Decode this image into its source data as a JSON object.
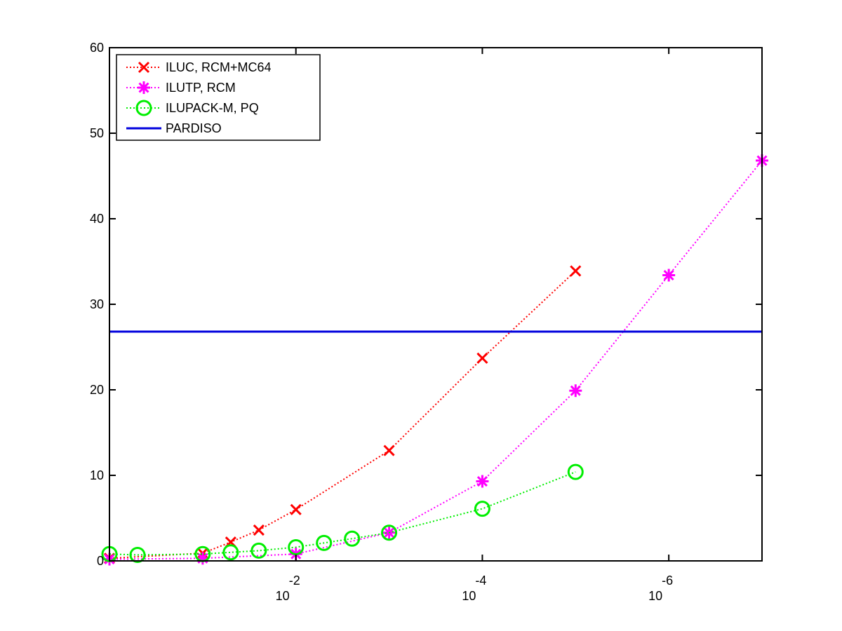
{
  "chart_data": {
    "type": "line",
    "title": "",
    "xlabel": "",
    "ylabel": "",
    "x_axis": {
      "scale": "log",
      "direction": "decreasing",
      "range": [
        1,
        1e-07
      ],
      "ticks": [
        {
          "value": 0.01,
          "base": "10",
          "exponent": "-2"
        },
        {
          "value": 0.0001,
          "base": "10",
          "exponent": "-4"
        },
        {
          "value": 1e-06,
          "base": "10",
          "exponent": "-6"
        }
      ]
    },
    "y_axis": {
      "scale": "linear",
      "range": [
        0,
        60
      ],
      "ticks": [
        "0",
        "10",
        "20",
        "30",
        "40",
        "50",
        "60"
      ]
    },
    "grid": false,
    "legend": {
      "placement": "top-left",
      "entries": [
        "ILUC, RCM+MC64",
        "ILUTP, RCM",
        "ILUPACK-M, PQ",
        "PARDISO"
      ]
    },
    "series": [
      {
        "name": "ILUC, RCM+MC64",
        "marker": "x",
        "line": "dotted",
        "color": "#ff0000",
        "x": [
          1,
          0.1,
          0.05,
          0.025,
          0.01,
          0.001,
          0.0001,
          1e-05
        ],
        "y": [
          0.3,
          0.9,
          2.2,
          3.6,
          6.0,
          12.9,
          23.7,
          33.9
        ]
      },
      {
        "name": "ILUTP, RCM",
        "marker": "asterisk",
        "line": "dotted",
        "color": "#ff00ff",
        "x": [
          1,
          0.1,
          0.01,
          0.001,
          0.0001,
          1e-05,
          1e-06,
          1e-07
        ],
        "y": [
          0.2,
          0.3,
          0.8,
          3.3,
          9.3,
          19.9,
          33.4,
          46.8
        ]
      },
      {
        "name": "ILUPACK-M, PQ",
        "marker": "circle",
        "line": "dotted",
        "color": "#00ee00",
        "x": [
          1,
          0.5,
          0.1,
          0.05,
          0.025,
          0.01,
          0.005,
          0.0025,
          0.001,
          0.0001,
          1e-05
        ],
        "y": [
          0.8,
          0.7,
          0.8,
          1.0,
          1.2,
          1.6,
          2.1,
          2.6,
          3.3,
          6.1,
          10.4
        ]
      },
      {
        "name": "PARDISO",
        "marker": "none",
        "line": "solid",
        "color": "#0000dd",
        "x": [
          1,
          1e-07
        ],
        "y": [
          26.8,
          26.8
        ]
      }
    ]
  }
}
